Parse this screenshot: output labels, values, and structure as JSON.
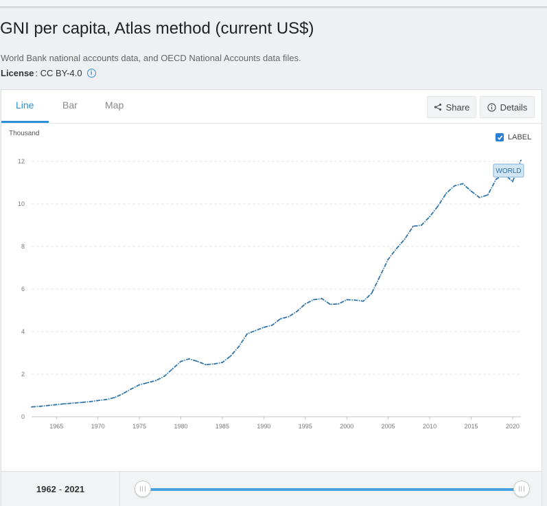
{
  "page": {
    "title": "GNI per capita, Atlas method (current US$)",
    "source": "World Bank national accounts data, and OECD National Accounts data files.",
    "license_label": "License",
    "license_value": ": CC BY-4.0"
  },
  "tabs": [
    {
      "label": "Line",
      "active": true
    },
    {
      "label": "Bar",
      "active": false
    },
    {
      "label": "Map",
      "active": false
    }
  ],
  "buttons": {
    "share": "Share",
    "details": "Details"
  },
  "label_toggle": {
    "label": "LABEL",
    "checked": true
  },
  "range": {
    "start": "1962",
    "sep": "-",
    "end": "2021"
  },
  "colors": {
    "accent": "#2a8fd4",
    "line": "#2f74a8",
    "slider": "#4aa3df"
  },
  "chart_data": {
    "type": "line",
    "ylabel": "Thousand",
    "ylim": [
      0,
      12
    ],
    "yticks": [
      0,
      2,
      4,
      6,
      8,
      10,
      12
    ],
    "xlim": [
      1962,
      2021
    ],
    "xticks": [
      1965,
      1970,
      1975,
      1980,
      1985,
      1990,
      1995,
      2000,
      2005,
      2010,
      2015,
      2020
    ],
    "grid": true,
    "series": [
      {
        "name": "WORLD",
        "x": [
          1962,
          1963,
          1964,
          1965,
          1966,
          1967,
          1968,
          1969,
          1970,
          1971,
          1972,
          1973,
          1974,
          1975,
          1976,
          1977,
          1978,
          1979,
          1980,
          1981,
          1982,
          1983,
          1984,
          1985,
          1986,
          1987,
          1988,
          1989,
          1990,
          1991,
          1992,
          1993,
          1994,
          1995,
          1996,
          1997,
          1998,
          1999,
          2000,
          2001,
          2002,
          2003,
          2004,
          2005,
          2006,
          2007,
          2008,
          2009,
          2010,
          2011,
          2012,
          2013,
          2014,
          2015,
          2016,
          2017,
          2018,
          2019,
          2020,
          2021
        ],
        "values": [
          0.46,
          0.49,
          0.53,
          0.57,
          0.61,
          0.64,
          0.67,
          0.71,
          0.76,
          0.81,
          0.9,
          1.08,
          1.3,
          1.5,
          1.6,
          1.7,
          1.9,
          2.25,
          2.6,
          2.72,
          2.6,
          2.45,
          2.48,
          2.55,
          2.85,
          3.3,
          3.9,
          4.05,
          4.2,
          4.3,
          4.6,
          4.7,
          4.95,
          5.3,
          5.5,
          5.55,
          5.28,
          5.3,
          5.5,
          5.48,
          5.43,
          5.8,
          6.6,
          7.4,
          7.9,
          8.35,
          8.95,
          9.0,
          9.4,
          9.9,
          10.5,
          10.85,
          10.95,
          10.6,
          10.3,
          10.42,
          11.15,
          11.4,
          11.05,
          12.05
        ]
      }
    ]
  }
}
